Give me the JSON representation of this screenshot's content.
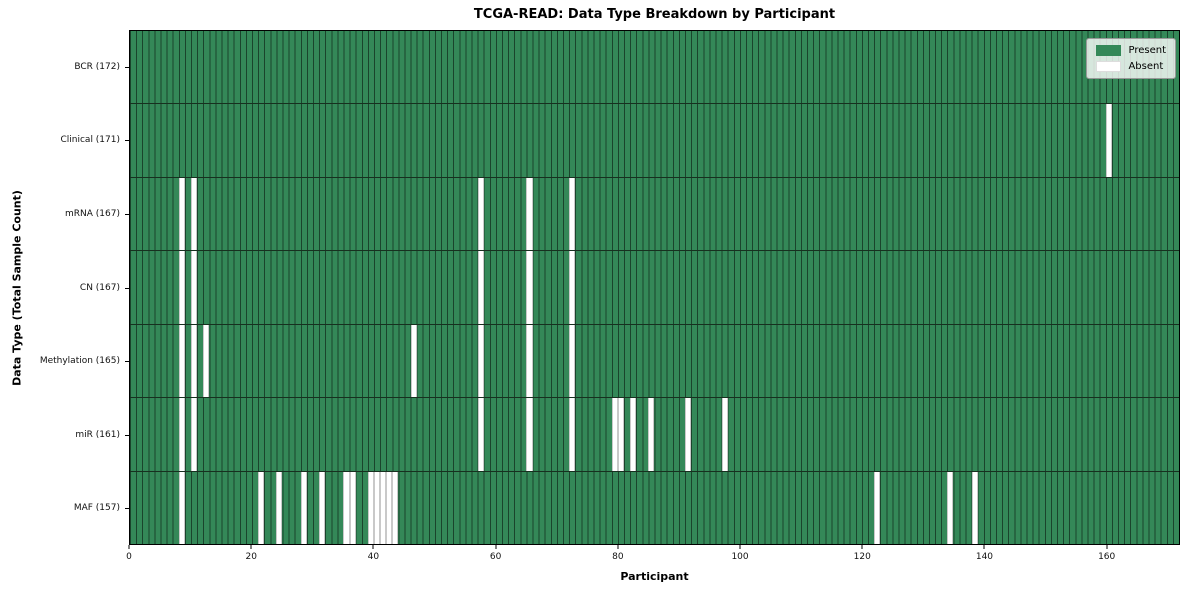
{
  "title": "TCGA-READ: Data Type Breakdown by Participant",
  "chart_data": {
    "type": "heatmap",
    "title": "TCGA-READ: Data Type Breakdown by Participant",
    "xlabel": "Participant",
    "ylabel": "Data Type (Total Sample Count)",
    "legend": {
      "present_label": "Present",
      "absent_label": "Absent",
      "position": "upper right"
    },
    "colors": {
      "present": "#348858",
      "absent": "#ffffff",
      "cell_edge": "rgba(0,0,0,0.5)"
    },
    "n_participants": 172,
    "xlim": [
      0,
      172
    ],
    "x_ticks": [
      0,
      20,
      40,
      60,
      80,
      100,
      120,
      140,
      160
    ],
    "rows": [
      {
        "label": "BCR (172)",
        "name": "BCR",
        "count": 172,
        "absent": []
      },
      {
        "label": "Clinical (171)",
        "name": "Clinical",
        "count": 171,
        "absent": [
          160
        ]
      },
      {
        "label": "mRNA (167)",
        "name": "mRNA",
        "count": 167,
        "absent": [
          8,
          10,
          57,
          65,
          72
        ]
      },
      {
        "label": "CN (167)",
        "name": "CN",
        "count": 167,
        "absent": [
          8,
          10,
          57,
          65,
          72
        ]
      },
      {
        "label": "Methylation (165)",
        "name": "Methylation",
        "count": 165,
        "absent": [
          8,
          10,
          12,
          46,
          57,
          65,
          72
        ]
      },
      {
        "label": "miR (161)",
        "name": "miR",
        "count": 161,
        "absent": [
          8,
          10,
          57,
          65,
          72,
          79,
          80,
          82,
          85,
          91,
          97
        ]
      },
      {
        "label": "MAF (157)",
        "name": "MAF",
        "count": 157,
        "absent": [
          8,
          21,
          24,
          28,
          31,
          35,
          36,
          39,
          40,
          41,
          42,
          43,
          122,
          134,
          138
        ]
      }
    ]
  }
}
